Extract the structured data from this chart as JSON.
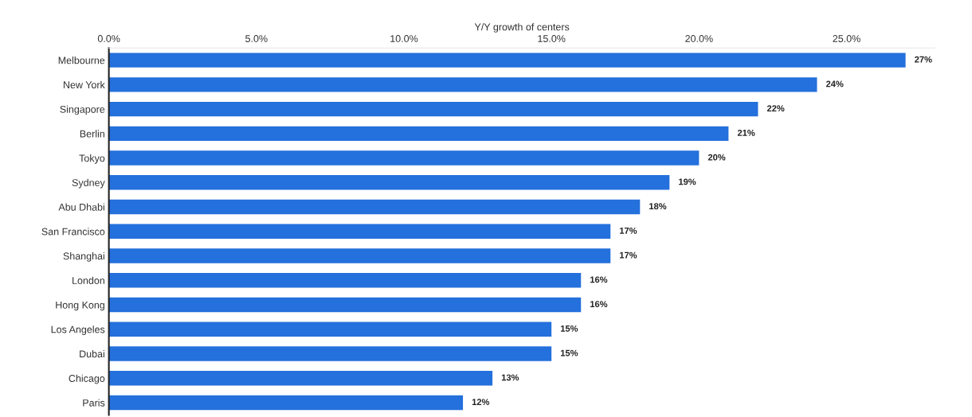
{
  "chart_data": {
    "type": "bar",
    "orientation": "horizontal",
    "xlabel": "Y/Y growth of centers",
    "categories": [
      "Melbourne",
      "New York",
      "Singapore",
      "Berlin",
      "Tokyo",
      "Sydney",
      "Abu Dhabi",
      "San Francisco",
      "Shanghai",
      "London",
      "Hong Kong",
      "Los Angeles",
      "Dubai",
      "Chicago",
      "Paris"
    ],
    "values": [
      27,
      24,
      22,
      21,
      20,
      19,
      18,
      17,
      17,
      16,
      16,
      15,
      15,
      13,
      12
    ],
    "value_labels": [
      "27%",
      "24%",
      "22%",
      "21%",
      "20%",
      "19%",
      "18%",
      "17%",
      "17%",
      "16%",
      "16%",
      "15%",
      "15%",
      "13%",
      "12%"
    ],
    "color": "#2470dc",
    "xlim": [
      0,
      28
    ],
    "xticks": [
      {
        "value": 0,
        "label": "0.0%"
      },
      {
        "value": 5,
        "label": "5.0%"
      },
      {
        "value": 10,
        "label": "10.0%"
      },
      {
        "value": 15,
        "label": "15.0%"
      },
      {
        "value": 20,
        "label": "20.0%"
      },
      {
        "value": 25,
        "label": "25.0%"
      }
    ],
    "grid": false
  }
}
